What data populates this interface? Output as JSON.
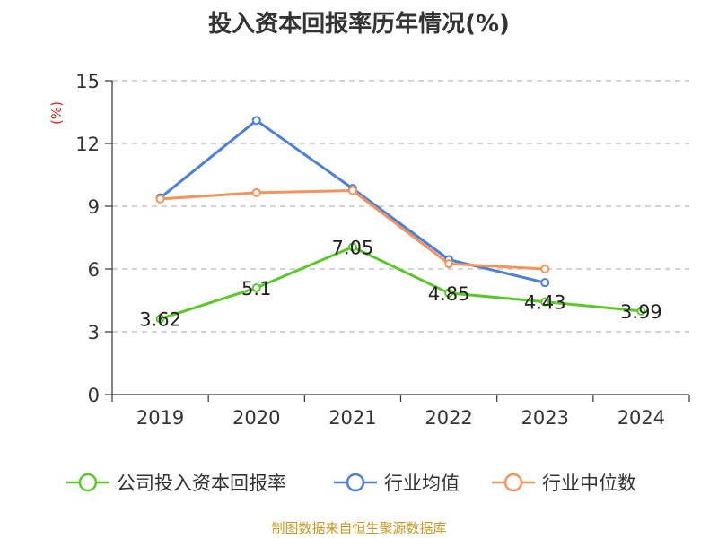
{
  "title": "投入资本回报率历年情况(%)",
  "source": "制图数据来自恒生聚源数据库",
  "chart_data": {
    "type": "line",
    "title": "投入资本回报率历年情况(%)",
    "ylabel": "(%)",
    "xlabel": "",
    "categories": [
      "2019",
      "2020",
      "2021",
      "2022",
      "2023",
      "2024"
    ],
    "ylim": [
      0,
      15
    ],
    "yticks": [
      0,
      3,
      6,
      9,
      12,
      15
    ],
    "grid": true,
    "legend_position": "bottom",
    "series": [
      {
        "name": "公司投入资本回报率",
        "color": "#5bc72b",
        "values": [
          3.62,
          5.1,
          7.05,
          4.85,
          4.43,
          3.99
        ],
        "labels": [
          "3.62",
          "5.1",
          "7.05",
          "4.85",
          "4.43",
          "3.99"
        ]
      },
      {
        "name": "行业均值",
        "color": "#4a7fdc",
        "values": [
          9.4,
          13.1,
          9.85,
          6.45,
          5.35,
          null
        ]
      },
      {
        "name": "行业中位数",
        "color": "#f5935a",
        "values": [
          9.35,
          9.65,
          9.75,
          6.25,
          6.0,
          null
        ]
      }
    ]
  }
}
